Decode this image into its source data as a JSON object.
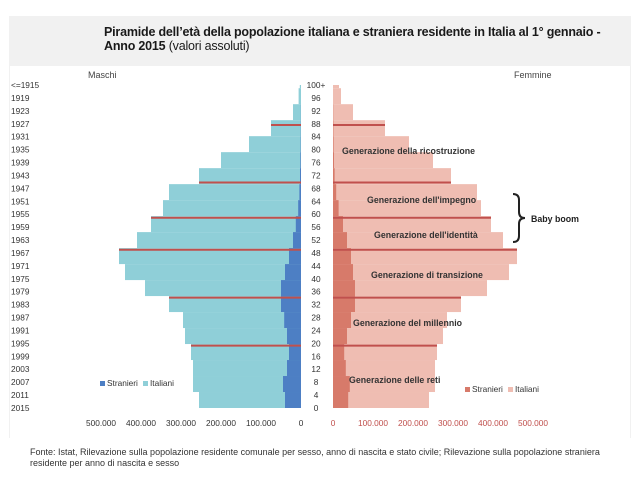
{
  "title": {
    "main": "Piramide dell’età della popolazione italiana e straniera residente in Italia al 1° gennaio - Anno 2015",
    "sub": "(valori assoluti)"
  },
  "source_note": "Fonte: Istat, Rilevazione sulla popolazione residente comunale per sesso, anno di nascita e stato civile; Rilevazione sulla popolazione straniera residente per anno di nascita e sesso",
  "colors": {
    "males_italians": "#8fcfd8",
    "males_foreigners": "#4d7fc4",
    "females_italians": "#efbdb2",
    "females_foreigners": "#d77a6a",
    "generation_lines": "#c0504d",
    "right_axis_labels": "#c0504d"
  },
  "chart_data": {
    "type": "bar",
    "orientation": "horizontal",
    "left_panel_label": "Maschi",
    "right_panel_label": "Femmine",
    "birth_year_ticks": [
      "<=1915",
      "1919",
      "1923",
      "1927",
      "1931",
      "1935",
      "1939",
      "1943",
      "1947",
      "1951",
      "1955",
      "1959",
      "1963",
      "1967",
      "1971",
      "1975",
      "1979",
      "1983",
      "1987",
      "1991",
      "1995",
      "1999",
      "2003",
      "2007",
      "2011",
      "2015"
    ],
    "age_ticks": [
      "100+",
      "96",
      "92",
      "88",
      "84",
      "80",
      "76",
      "72",
      "68",
      "64",
      "60",
      "56",
      "52",
      "48",
      "44",
      "40",
      "36",
      "32",
      "28",
      "24",
      "20",
      "16",
      "12",
      "8",
      "4",
      "0"
    ],
    "x_ticks_males": [
      "500.000",
      "400.000",
      "300.000",
      "200.000",
      "100.000",
      "0"
    ],
    "x_ticks_females": [
      "0",
      "100.000",
      "200.000",
      "300.000",
      "400.000",
      "500.000"
    ],
    "x_range": [
      0,
      500000
    ],
    "legend_males": [
      "Stranieri",
      "Italiani"
    ],
    "legend_females": [
      "Stranieri",
      "Italiani"
    ],
    "age_bands": [
      {
        "age_from": 100,
        "age_to": 100,
        "m_ita": 3000,
        "m_str": 0,
        "f_ita": 15000,
        "f_str": 0
      },
      {
        "age_from": 99,
        "age_to": 95,
        "m_ita": 6000,
        "m_str": 0,
        "f_ita": 20000,
        "f_str": 0
      },
      {
        "age_from": 94,
        "age_to": 90,
        "m_ita": 20000,
        "m_str": 300,
        "f_ita": 50000,
        "f_str": 500
      },
      {
        "age_from": 89,
        "age_to": 85,
        "m_ita": 75000,
        "m_str": 500,
        "f_ita": 130000,
        "f_str": 1000
      },
      {
        "age_from": 84,
        "age_to": 80,
        "m_ita": 130000,
        "m_str": 800,
        "f_ita": 190000,
        "f_str": 1500
      },
      {
        "age_from": 79,
        "age_to": 75,
        "m_ita": 200000,
        "m_str": 1500,
        "f_ita": 250000,
        "f_str": 2500
      },
      {
        "age_from": 74,
        "age_to": 70,
        "m_ita": 255000,
        "m_str": 2500,
        "f_ita": 295000,
        "f_str": 4000
      },
      {
        "age_from": 69,
        "age_to": 65,
        "m_ita": 330000,
        "m_str": 4000,
        "f_ita": 360000,
        "f_str": 8000
      },
      {
        "age_from": 64,
        "age_to": 60,
        "m_ita": 345000,
        "m_str": 7000,
        "f_ita": 370000,
        "f_str": 14000
      },
      {
        "age_from": 59,
        "age_to": 55,
        "m_ita": 375000,
        "m_str": 13000,
        "f_ita": 395000,
        "f_str": 25000
      },
      {
        "age_from": 54,
        "age_to": 50,
        "m_ita": 410000,
        "m_str": 20000,
        "f_ita": 425000,
        "f_str": 35000
      },
      {
        "age_from": 49,
        "age_to": 45,
        "m_ita": 455000,
        "m_str": 30000,
        "f_ita": 460000,
        "f_str": 45000
      },
      {
        "age_from": 44,
        "age_to": 40,
        "m_ita": 440000,
        "m_str": 40000,
        "f_ita": 440000,
        "f_str": 50000
      },
      {
        "age_from": 39,
        "age_to": 35,
        "m_ita": 390000,
        "m_str": 50000,
        "f_ita": 385000,
        "f_str": 55000
      },
      {
        "age_from": 34,
        "age_to": 30,
        "m_ita": 330000,
        "m_str": 50000,
        "f_ita": 320000,
        "f_str": 55000
      },
      {
        "age_from": 29,
        "age_to": 25,
        "m_ita": 295000,
        "m_str": 42000,
        "f_ita": 285000,
        "f_str": 45000
      },
      {
        "age_from": 24,
        "age_to": 20,
        "m_ita": 290000,
        "m_str": 35000,
        "f_ita": 275000,
        "f_str": 35000
      },
      {
        "age_from": 19,
        "age_to": 15,
        "m_ita": 275000,
        "m_str": 30000,
        "f_ita": 260000,
        "f_str": 28000
      },
      {
        "age_from": 14,
        "age_to": 10,
        "m_ita": 270000,
        "m_str": 35000,
        "f_ita": 255000,
        "f_str": 32000
      },
      {
        "age_from": 9,
        "age_to": 5,
        "m_ita": 270000,
        "m_str": 45000,
        "f_ita": 255000,
        "f_str": 42000
      },
      {
        "age_from": 4,
        "age_to": 0,
        "m_ita": 255000,
        "m_str": 40000,
        "f_ita": 240000,
        "f_str": 38000
      }
    ],
    "generation_separator_ages": [
      88,
      70,
      59,
      49,
      34,
      19
    ],
    "generations": [
      "Generazione della ricostruzione",
      "Generazione dell'impegno",
      "Generazione dell'identità",
      "Generazione di transizione",
      "Generazione del millennio",
      "Generazione delle reti"
    ],
    "baby_boom_label": "Baby boom"
  }
}
